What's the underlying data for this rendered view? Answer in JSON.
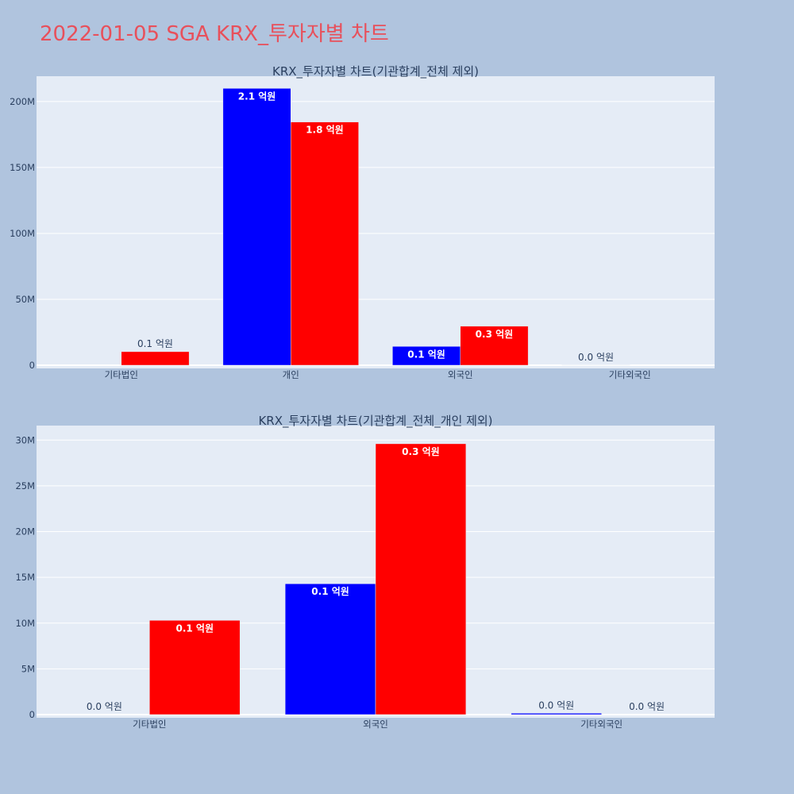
{
  "page_title": "2022-01-05 SGA KRX_투자자별 차트",
  "colors": {
    "background": "#b0c4de",
    "plot_bg": "#e5ecf6",
    "title": "#e8505b",
    "text": "#2a3f5f",
    "series_1": "#0000ff",
    "series_2": "#ff0000"
  },
  "chart_data": [
    {
      "type": "bar",
      "title": "KRX_투자자별 차트(기관합계_전체 제외)",
      "categories": [
        "기타법인",
        "개인",
        "외국인",
        "기타외국인"
      ],
      "ylim": [
        0,
        215000000
      ],
      "yticks": [
        0,
        50000000,
        100000000,
        150000000,
        200000000
      ],
      "ytick_labels": [
        "0",
        "50M",
        "100M",
        "150M",
        "200M"
      ],
      "grid": true,
      "series": [
        {
          "color": "#0000ff",
          "values": [
            0,
            210000000,
            14300000,
            150000
          ],
          "labels": [
            "",
            "2.1 억원",
            "0.1 억원",
            "0.0 억원"
          ]
        },
        {
          "color": "#ff0000",
          "values": [
            10300000,
            184500000,
            29600000,
            0
          ],
          "labels": [
            "0.1 억원",
            "1.8 억원",
            "0.3 억원",
            ""
          ]
        }
      ]
    },
    {
      "type": "bar",
      "title": "KRX_투자자별 차트(기관합계_전체_개인 제외)",
      "categories": [
        "기타법인",
        "외국인",
        "기타외국인"
      ],
      "ylim": [
        0,
        31500000
      ],
      "yticks": [
        0,
        5000000,
        10000000,
        15000000,
        20000000,
        25000000,
        30000000
      ],
      "ytick_labels": [
        "0",
        "5M",
        "10M",
        "15M",
        "20M",
        "25M",
        "30M"
      ],
      "grid": true,
      "series": [
        {
          "color": "#0000ff",
          "values": [
            0,
            14300000,
            150000
          ],
          "labels": [
            "0.0 억원",
            "0.1 억원",
            "0.0 억원"
          ]
        },
        {
          "color": "#ff0000",
          "values": [
            10300000,
            29600000,
            0
          ],
          "labels": [
            "0.1 억원",
            "0.3 억원",
            "0.0 억원"
          ]
        }
      ]
    }
  ]
}
